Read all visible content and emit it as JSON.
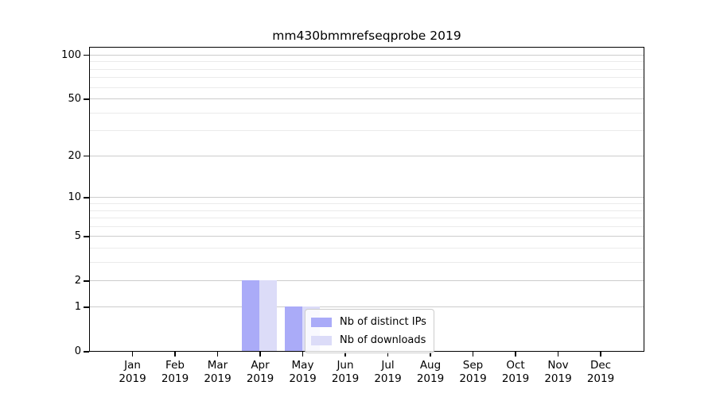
{
  "title": "mm430bmmrefseqprobe 2019",
  "axes": {
    "x_months": [
      "Jan",
      "Feb",
      "Mar",
      "Apr",
      "May",
      "Jun",
      "Jul",
      "Aug",
      "Sep",
      "Oct",
      "Nov",
      "Dec"
    ],
    "x_year": "2019",
    "y_tick_labels": [
      "0",
      "1",
      "2",
      "5",
      "10",
      "20",
      "50",
      "100"
    ]
  },
  "legend": {
    "items": [
      {
        "label": "Nb of distinct IPs",
        "key": "distinct-ips"
      },
      {
        "label": "Nb of downloads",
        "key": "downloads"
      }
    ]
  },
  "colors": {
    "distinct_ips": "#aaabf8",
    "downloads": "#dcdcf8",
    "grid_major": "#cccccc",
    "grid_minor": "#ebebeb",
    "axis": "#000000"
  },
  "chart_data": {
    "type": "bar",
    "title": "mm430bmmrefseqprobe 2019",
    "x": [
      "Jan 2019",
      "Feb 2019",
      "Mar 2019",
      "Apr 2019",
      "May 2019",
      "Jun 2019",
      "Jul 2019",
      "Aug 2019",
      "Sep 2019",
      "Oct 2019",
      "Nov 2019",
      "Dec 2019"
    ],
    "series": [
      {
        "name": "Nb of distinct IPs",
        "key": "distinct-ips",
        "color": "#aaabf8",
        "values": [
          0,
          0,
          0,
          2,
          1,
          0,
          0,
          0,
          0,
          0,
          0,
          0
        ]
      },
      {
        "name": "Nb of downloads",
        "key": "downloads",
        "color": "#dcdcf8",
        "values": [
          0,
          0,
          0,
          2,
          1,
          0,
          0,
          0,
          0,
          0,
          0,
          0
        ]
      }
    ],
    "yscale": "log1p",
    "ylim": [
      0,
      114
    ],
    "yticks_major": [
      0,
      1,
      2,
      5,
      10,
      20,
      50,
      100
    ],
    "yticks_minor": [
      3,
      4,
      6,
      7,
      8,
      9,
      30,
      40,
      60,
      70,
      80,
      90
    ],
    "grid": "horizontal",
    "legend_position": "inside-lower-right-of-center"
  }
}
